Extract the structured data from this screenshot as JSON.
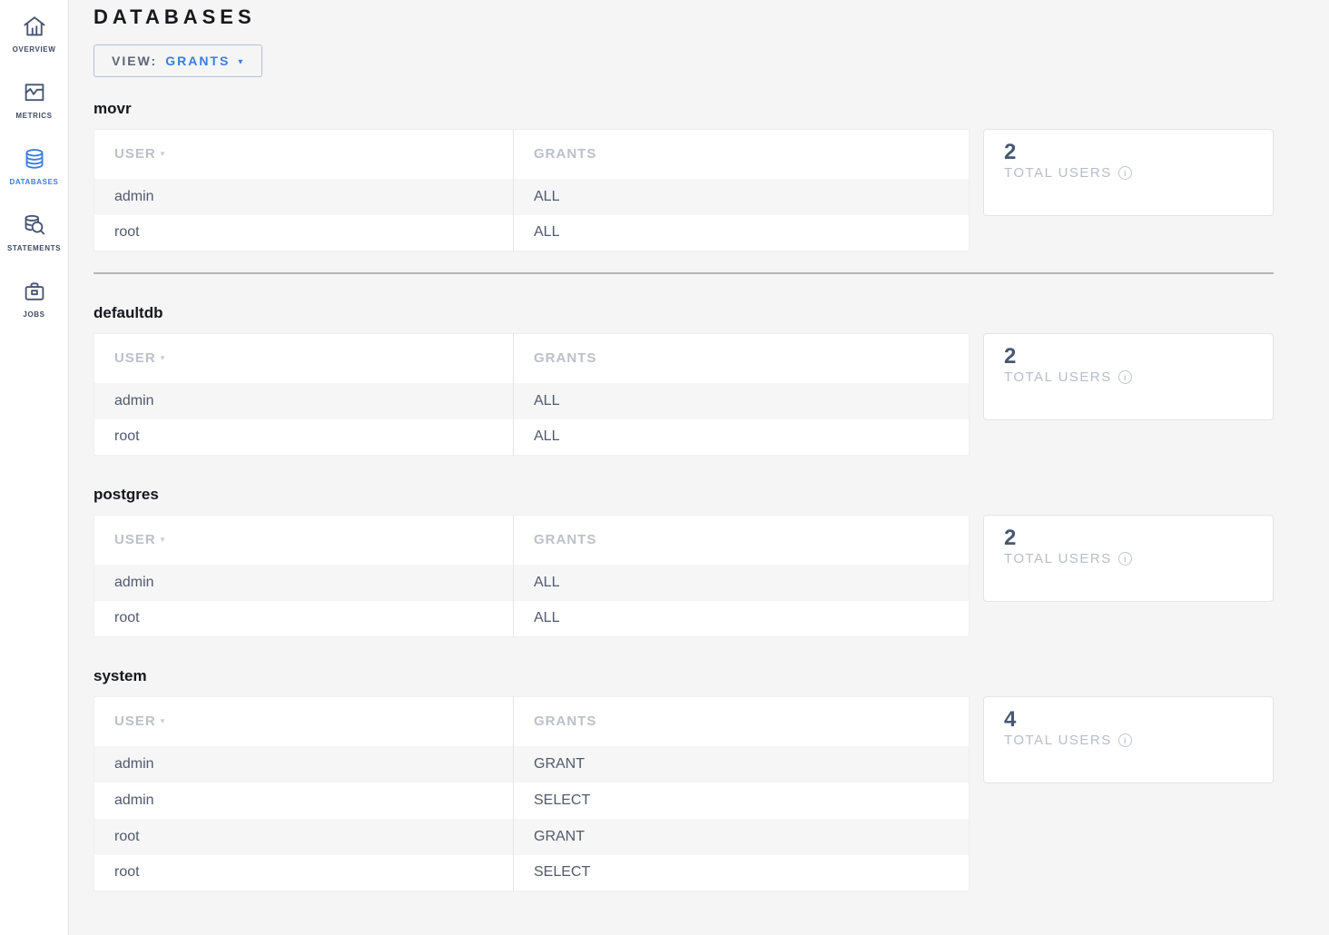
{
  "header": {
    "title": "DATABASES"
  },
  "sidebar": {
    "items": [
      {
        "label": "OVERVIEW",
        "icon": "home-icon",
        "active": false
      },
      {
        "label": "METRICS",
        "icon": "metrics-icon",
        "active": false
      },
      {
        "label": "DATABASES",
        "icon": "database-icon",
        "active": true
      },
      {
        "label": "STATEMENTS",
        "icon": "statements-icon",
        "active": false
      },
      {
        "label": "JOBS",
        "icon": "jobs-icon",
        "active": false
      }
    ]
  },
  "toolbar": {
    "view_label": "VIEW:",
    "view_value": "GRANTS",
    "caret_icon": "▾"
  },
  "table": {
    "columns": [
      "USER",
      "GRANTS"
    ],
    "sort_caret": "▾"
  },
  "summary": {
    "total_users_label": "TOTAL USERS",
    "info_icon": "i"
  },
  "databases": [
    {
      "name": "movr",
      "total_users": "2",
      "rows": [
        {
          "user": "admin",
          "grants": "ALL"
        },
        {
          "user": "root",
          "grants": "ALL"
        }
      ],
      "divider_after": true
    },
    {
      "name": "defaultdb",
      "total_users": "2",
      "rows": [
        {
          "user": "admin",
          "grants": "ALL"
        },
        {
          "user": "root",
          "grants": "ALL"
        }
      ],
      "divider_after": false
    },
    {
      "name": "postgres",
      "total_users": "2",
      "rows": [
        {
          "user": "admin",
          "grants": "ALL"
        },
        {
          "user": "root",
          "grants": "ALL"
        }
      ],
      "divider_after": false
    },
    {
      "name": "system",
      "total_users": "4",
      "rows": [
        {
          "user": "admin",
          "grants": "GRANT"
        },
        {
          "user": "admin",
          "grants": "SELECT"
        },
        {
          "user": "root",
          "grants": "GRANT"
        },
        {
          "user": "root",
          "grants": "SELECT"
        }
      ],
      "divider_after": false
    }
  ],
  "colors": {
    "accent_blue": "#3b7de2",
    "page_bg": "#f5f5f6",
    "card_number": "#475872",
    "divider": "#b6b6b6"
  }
}
